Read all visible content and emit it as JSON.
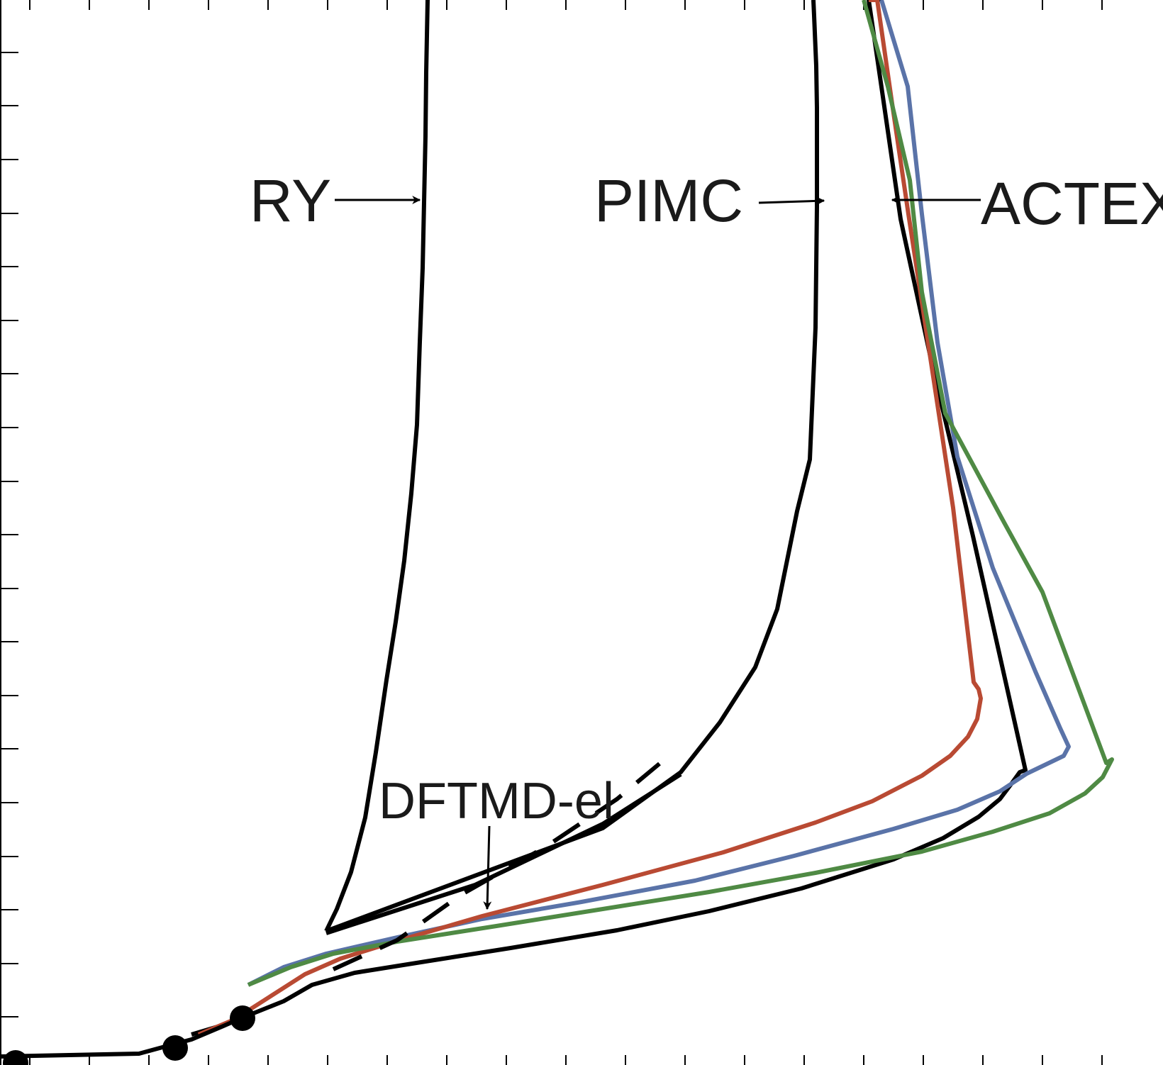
{
  "chart_data": {
    "type": "line",
    "title": "",
    "xlabel": "",
    "ylabel": "",
    "grid": false,
    "legend": "none",
    "xlim": [
      0,
      1640
    ],
    "ylim": [
      0,
      1502
    ],
    "annotations": [
      {
        "id": "ry",
        "text": "RY"
      },
      {
        "id": "pimc",
        "text": "PIMC"
      },
      {
        "id": "actex",
        "text": "ACTEX"
      },
      {
        "id": "dftmd",
        "text": "DFTMD-el"
      }
    ],
    "series": [
      {
        "id": "ry",
        "color": "#000000",
        "style": "solid",
        "x": [
          460,
          475,
          495,
          515,
          530,
          545,
          558,
          570,
          580,
          588,
          592,
          596,
          600,
          601,
          603
        ],
        "y": [
          189,
          220,
          272,
          349,
          441,
          543,
          625,
          711,
          806,
          903,
          1020,
          1124,
          1310,
          1400,
          1502
        ]
      },
      {
        "id": "pimc",
        "color": "#000000",
        "style": "solid",
        "x": [
          460,
          850,
          960,
          1015,
          1065,
          1096,
          1124,
          1142,
          1150,
          1152,
          1152,
          1151,
          1148,
          1147
        ],
        "y": [
          189,
          334,
          413,
          483,
          561,
          643,
          781,
          854,
          1040,
          1210,
          1350,
          1409,
          1480,
          1502
        ]
      },
      {
        "id": "actex-black",
        "color": "#000000",
        "style": "solid",
        "x": [
          270,
          320,
          360,
          400,
          440,
          500,
          600,
          720,
          870,
          1000,
          1130,
          1260,
          1330,
          1380,
          1410,
          1425,
          1438,
          1446,
          1372,
          1315,
          1270,
          1241,
          1225,
          1243
        ],
        "y": [
          43,
          58,
          74,
          90,
          113,
          130,
          146,
          165,
          190,
          217,
          249,
          290,
          320,
          350,
          375,
          395,
          413,
          416,
          746,
          985,
          1193,
          1393,
          1502,
          1502
        ]
      },
      {
        "id": "blue",
        "color": "#5a73a8",
        "style": "solid",
        "x": [
          350,
          400,
          460,
          560,
          680,
          820,
          980,
          1120,
          1260,
          1350,
          1410,
          1448,
          1500,
          1507,
          1495,
          1460,
          1400,
          1350,
          1322,
          1300,
          1280,
          1243
        ],
        "y": [
          113,
          138,
          157,
          180,
          206,
          230,
          260,
          295,
          333,
          360,
          386,
          411,
          436,
          449,
          475,
          555,
          701,
          858,
          1019,
          1200,
          1380,
          1502
        ]
      },
      {
        "id": "red",
        "color": "#b94a33",
        "style": "solid",
        "x": [
          280,
          330,
          380,
          430,
          480,
          560,
          680,
          850,
          1020,
          1150,
          1230,
          1300,
          1340,
          1365,
          1378,
          1383,
          1380,
          1373,
          1344,
          1310,
          1281,
          1258,
          1237,
          1225
        ],
        "y": [
          43,
          64,
          96,
          128,
          150,
          175,
          210,
          254,
          300,
          342,
          372,
          408,
          436,
          463,
          488,
          517,
          530,
          540,
          786,
          1010,
          1200,
          1356,
          1502,
          1502
        ]
      },
      {
        "id": "green",
        "color": "#4f8a44",
        "style": "solid",
        "x": [
          350,
          410,
          470,
          560,
          700,
          850,
          1000,
          1150,
          1300,
          1400,
          1480,
          1530,
          1555,
          1568,
          1560,
          1470,
          1416,
          1333,
          1300,
          1283,
          1252,
          1218
        ],
        "y": [
          113,
          138,
          157,
          174,
          196,
          220,
          244,
          271,
          301,
          329,
          355,
          383,
          406,
          431,
          426,
          667,
          765,
          919,
          1090,
          1248,
          1380,
          1502
        ]
      },
      {
        "id": "dftmd-solid",
        "color": "#000000",
        "style": "solid",
        "x": [
          460,
          670,
          850,
          960
        ],
        "y": [
          186,
          254,
          340,
          410
        ]
      },
      {
        "id": "dftmd-dashed",
        "color": "#000000",
        "style": "dashed",
        "x": [
          470,
          560,
          650,
          770,
          870,
          930
        ],
        "y": [
          135,
          176,
          240,
          308,
          375,
          425
        ]
      },
      {
        "id": "low-segment",
        "color": "#000000",
        "style": "solid",
        "x": [
          0,
          196,
          240,
          270,
          315,
          340
        ],
        "y": [
          12,
          16,
          28,
          36,
          55,
          66
        ]
      }
    ],
    "points": {
      "x": [
        22,
        247,
        342
      ],
      "y": [
        3,
        24,
        66
      ]
    },
    "x_ticks": [
      42,
      126,
      210,
      294,
      378,
      462,
      546,
      630,
      714,
      798,
      882,
      966,
      1050,
      1134,
      1218,
      1302,
      1386,
      1470,
      1554
    ],
    "y_ticks": [
      68,
      143,
      219,
      294,
      370,
      446,
      521,
      597,
      672,
      748,
      823,
      899,
      975,
      1050,
      1126,
      1201,
      1277,
      1353,
      1428
    ]
  }
}
